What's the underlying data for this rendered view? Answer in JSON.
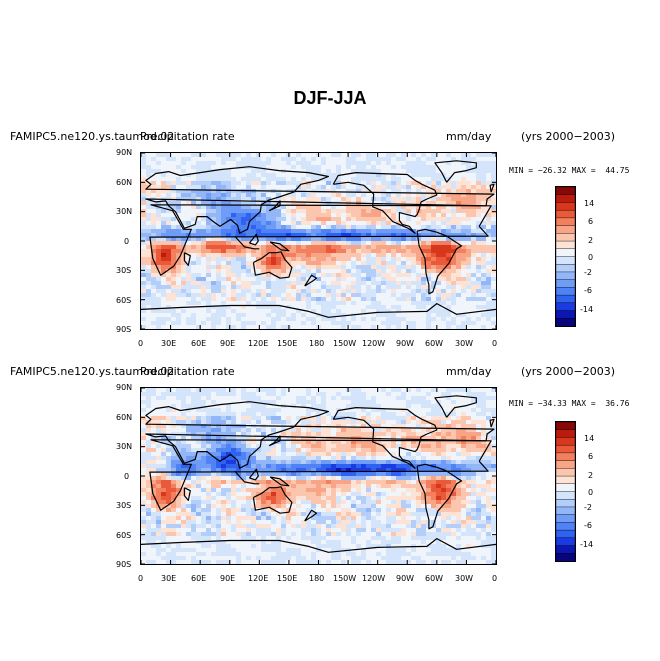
{
  "figure_title": "DJF-JJA",
  "palette": {
    "levels": [
      "-16",
      "-14",
      "-12",
      "-10",
      "-8",
      "-6",
      "-4",
      "-2",
      "-1",
      "0",
      "1",
      "2",
      "4",
      "6",
      "8",
      "10",
      "12",
      "14",
      "16"
    ],
    "colors": [
      "#07047c",
      "#0b16b4",
      "#1a3be0",
      "#2f62f0",
      "#4f82f4",
      "#6f9cf6",
      "#92b6f8",
      "#b4cefa",
      "#d4e4fb",
      "#f0f4fb",
      "#fde3d6",
      "#fbc6ad",
      "#f8a486",
      "#f27f5e",
      "#ea5a3a",
      "#d9361e",
      "#bb1b0d",
      "#870807"
    ],
    "label_levels": [
      "14",
      "6",
      "2",
      "0",
      "-2",
      "-6",
      "-14"
    ]
  },
  "panels": [
    {
      "case_label": "FAMIPC5.ne120.ys.taumod.02",
      "variable_label": "Precipitation rate",
      "units": "mm/day",
      "years": "(yrs 2000−2003)",
      "stats_text": "MIN = −26.32 MAX =  44.75",
      "lat_ticks": [
        "90N",
        "60N",
        "30N",
        "0",
        "30S",
        "60S",
        "90S"
      ],
      "lon_ticks": [
        "0",
        "30E",
        "60E",
        "90E",
        "120E",
        "150E",
        "180",
        "150W",
        "120W",
        "90W",
        "60W",
        "30W",
        "0"
      ]
    },
    {
      "case_label": "FAMIPC5.ne120.ys.taumod.02",
      "variable_label": "Precipitation rate",
      "units": "mm/day",
      "years": "(yrs 2000−2003)",
      "stats_text": "MIN = −34.33 MAX =  36.76",
      "lat_ticks": [
        "90N",
        "60N",
        "30N",
        "0",
        "30S",
        "60S",
        "90S"
      ],
      "lon_ticks": [
        "0",
        "30E",
        "60E",
        "90E",
        "120E",
        "150E",
        "180",
        "150W",
        "120W",
        "90W",
        "60W",
        "30W",
        "0"
      ]
    }
  ],
  "chart_data": [
    {
      "type": "heatmap",
      "title": "DJF-JJA",
      "subtitle": "FAMIPC5.ne120.ys.taumod.02 Precipitation rate",
      "units": "mm/day",
      "period": "(yrs 2000−2003)",
      "min": -26.32,
      "max": 44.75,
      "xlim": [
        0,
        360
      ],
      "ylim": [
        -90,
        90
      ],
      "x_ticks": [
        "0",
        "30E",
        "60E",
        "90E",
        "120E",
        "150E",
        "180",
        "150W",
        "120W",
        "90W",
        "60W",
        "30W",
        "0"
      ],
      "y_ticks": [
        "90N",
        "60N",
        "30N",
        "0",
        "30S",
        "60S",
        "90S"
      ],
      "colorbar_levels": [
        -16,
        -14,
        -12,
        -10,
        -8,
        -6,
        -4,
        -2,
        -1,
        0,
        1,
        2,
        4,
        6,
        8,
        10,
        12,
        14,
        16
      ],
      "colorbar_labels": [
        14,
        6,
        2,
        0,
        -2,
        -6,
        -14
      ],
      "features": [
        {
          "lon": [
            0,
            360
          ],
          "lat": [
            0,
            12
          ],
          "v": -9
        },
        {
          "lon": [
            0,
            360
          ],
          "lat": [
            -12,
            -2
          ],
          "v": 5
        },
        {
          "lon": [
            120,
            285
          ],
          "lat": [
            15,
            40
          ],
          "v": 3
        },
        {
          "lon": [
            300,
            355
          ],
          "lat": [
            30,
            55
          ],
          "v": 5
        },
        {
          "lon": [
            280,
            330
          ],
          "lat": [
            -30,
            0
          ],
          "v": 10
        },
        {
          "lon": [
            10,
            40
          ],
          "lat": [
            -30,
            -5
          ],
          "v": 11
        },
        {
          "lon": [
            120,
            150
          ],
          "lat": [
            -30,
            -12
          ],
          "v": 9
        },
        {
          "lon": [
            60,
            110
          ],
          "lat": [
            -12,
            5
          ],
          "v": 6
        },
        {
          "lon": [
            80,
            140
          ],
          "lat": [
            10,
            35
          ],
          "v": -9
        },
        {
          "lon": [
            40,
            110
          ],
          "lat": [
            30,
            60
          ],
          "v": -3
        },
        {
          "lon": [
            150,
            210
          ],
          "lat": [
            -25,
            -5
          ],
          "v": 5
        },
        {
          "lon": [
            0,
            30
          ],
          "lat": [
            45,
            70
          ],
          "v": 3
        }
      ]
    },
    {
      "type": "heatmap",
      "title": "DJF-JJA",
      "subtitle": "FAMIPC5.ne120.ys.taumod.02 Precipitation rate",
      "units": "mm/day",
      "period": "(yrs 2000−2003)",
      "min": -34.33,
      "max": 36.76,
      "xlim": [
        0,
        360
      ],
      "ylim": [
        -90,
        90
      ],
      "x_ticks": [
        "0",
        "30E",
        "60E",
        "90E",
        "120E",
        "150E",
        "180",
        "150W",
        "120W",
        "90W",
        "60W",
        "30W",
        "0"
      ],
      "y_ticks": [
        "90N",
        "60N",
        "30N",
        "0",
        "30S",
        "60S",
        "90S"
      ],
      "colorbar_levels": [
        -16,
        -14,
        -12,
        -10,
        -8,
        -6,
        -4,
        -2,
        -1,
        0,
        1,
        2,
        4,
        6,
        8,
        10,
        12,
        14,
        16
      ],
      "colorbar_labels": [
        14,
        6,
        2,
        0,
        -2,
        -6,
        -14
      ],
      "features": [
        {
          "lon": [
            120,
            340
          ],
          "lat": [
            0,
            15
          ],
          "v": -11
        },
        {
          "lon": [
            0,
            360
          ],
          "lat": [
            -10,
            -2
          ],
          "v": 4
        },
        {
          "lon": [
            160,
            270
          ],
          "lat": [
            20,
            50
          ],
          "v": 4
        },
        {
          "lon": [
            290,
            350
          ],
          "lat": [
            25,
            55
          ],
          "v": 5
        },
        {
          "lon": [
            285,
            325
          ],
          "lat": [
            -30,
            -5
          ],
          "v": 10
        },
        {
          "lon": [
            10,
            40
          ],
          "lat": [
            -30,
            -5
          ],
          "v": 10
        },
        {
          "lon": [
            115,
            150
          ],
          "lat": [
            -30,
            -12
          ],
          "v": 9
        },
        {
          "lon": [
            65,
            110
          ],
          "lat": [
            5,
            30
          ],
          "v": -10
        },
        {
          "lon": [
            30,
            60
          ],
          "lat": [
            0,
            20
          ],
          "v": -7
        },
        {
          "lon": [
            40,
            110
          ],
          "lat": [
            35,
            60
          ],
          "v": -3
        },
        {
          "lon": [
            0,
            30
          ],
          "lat": [
            45,
            70
          ],
          "v": 3
        },
        {
          "lon": [
            150,
            200
          ],
          "lat": [
            -25,
            -5
          ],
          "v": 4
        }
      ]
    }
  ]
}
